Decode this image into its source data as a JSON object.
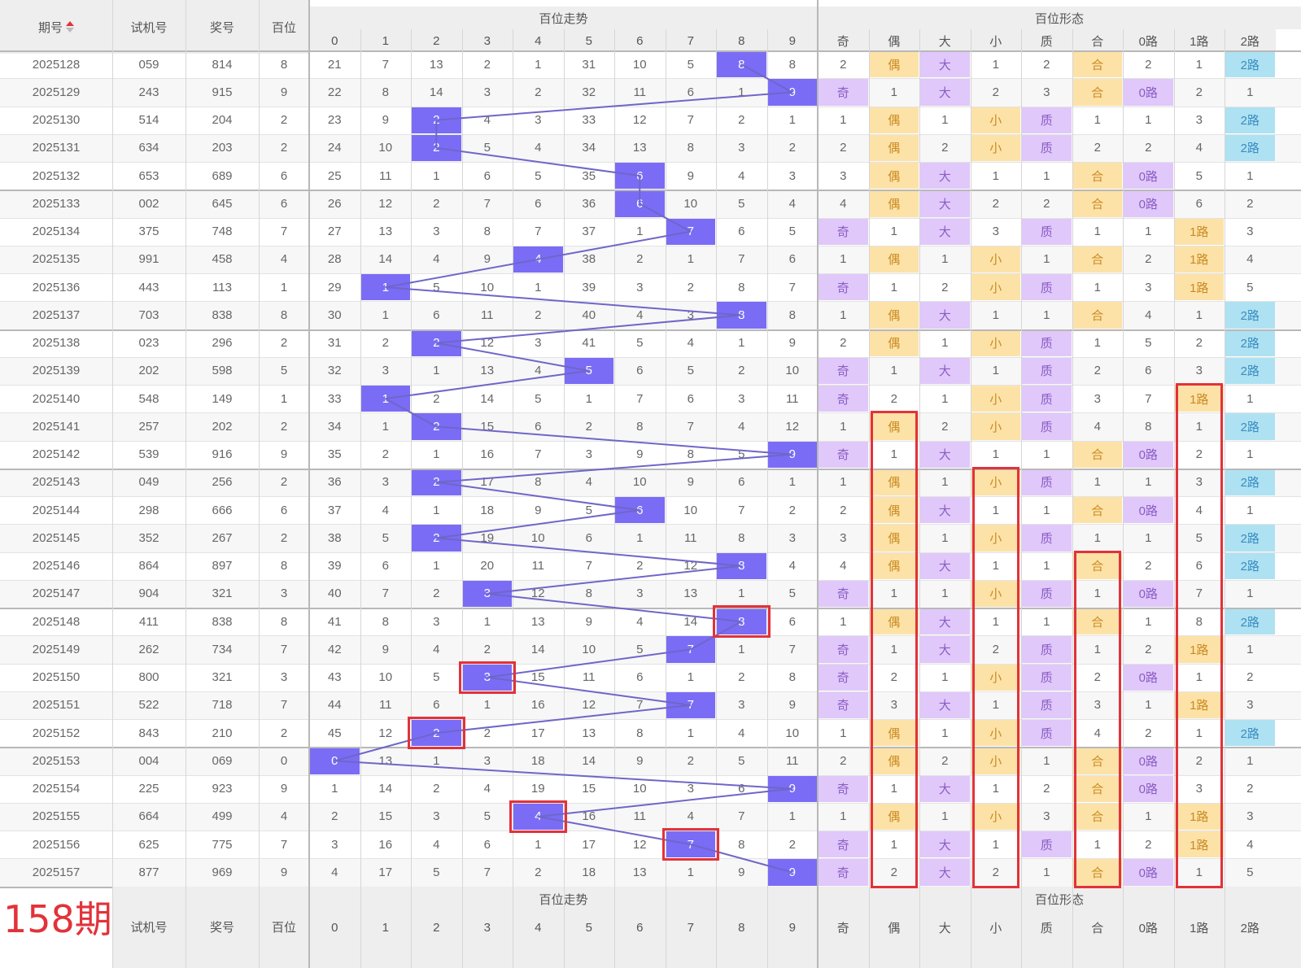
{
  "header": {
    "issue": "期号",
    "test_no": "试机号",
    "prize_no": "奖号",
    "hundreds": "百位",
    "trend_group": "百位走势",
    "form_group": "百位形态",
    "trend_cols": [
      "0",
      "1",
      "2",
      "3",
      "4",
      "5",
      "6",
      "7",
      "8",
      "9"
    ],
    "form_cols": [
      "奇",
      "偶",
      "大",
      "小",
      "质",
      "合",
      "0路",
      "1路",
      "2路"
    ]
  },
  "footer": {
    "issue_label": "158期",
    "test_no": "试机号",
    "prize_no": "奖号",
    "hundreds": "百位",
    "trend_group": "百位走势",
    "form_group": "百位形态"
  },
  "form_labels": {
    "odd": "奇",
    "even": "偶",
    "big": "大",
    "small": "小",
    "prime": "质",
    "comp": "合",
    "r0": "0路",
    "r1": "1路",
    "r2": "2路"
  },
  "colors": {
    "ball": "#7b6cf6",
    "highlight": "#e2323a",
    "purple_tag": "#e0c8fa",
    "yellow_tag": "#fde2a8",
    "blue_tag": "#aee2f2"
  },
  "chart_data": {
    "type": "table",
    "columns": [
      "期号",
      "试机号",
      "奖号",
      "百位",
      "0",
      "1",
      "2",
      "3",
      "4",
      "5",
      "6",
      "7",
      "8",
      "9",
      "奇",
      "偶",
      "大",
      "小",
      "质",
      "合",
      "0路",
      "1路",
      "2路"
    ],
    "rows": [
      {
        "issue": "2025128",
        "test": "059",
        "prize": "814",
        "h": 8,
        "miss": [
          21,
          7,
          13,
          2,
          1,
          31,
          10,
          5,
          8,
          8
        ],
        "form": [
          2,
          "偶",
          "大",
          1,
          2,
          "合",
          2,
          1,
          "2路"
        ]
      },
      {
        "issue": "2025129",
        "test": "243",
        "prize": "915",
        "h": 9,
        "miss": [
          22,
          8,
          14,
          3,
          2,
          32,
          11,
          6,
          1,
          9
        ],
        "form": [
          "奇",
          1,
          "大",
          2,
          3,
          "合",
          "0路",
          2,
          1
        ]
      },
      {
        "issue": "2025130",
        "test": "514",
        "prize": "204",
        "h": 2,
        "miss": [
          23,
          9,
          2,
          4,
          3,
          33,
          12,
          7,
          2,
          1
        ],
        "form": [
          1,
          "偶",
          1,
          "小",
          "质",
          1,
          1,
          3,
          "2路"
        ]
      },
      {
        "issue": "2025131",
        "test": "634",
        "prize": "203",
        "h": 2,
        "miss": [
          24,
          10,
          2,
          5,
          4,
          34,
          13,
          8,
          3,
          2
        ],
        "form": [
          2,
          "偶",
          2,
          "小",
          "质",
          2,
          2,
          4,
          "2路"
        ]
      },
      {
        "issue": "2025132",
        "test": "653",
        "prize": "689",
        "h": 6,
        "miss": [
          25,
          11,
          1,
          6,
          5,
          35,
          6,
          9,
          4,
          3
        ],
        "form": [
          3,
          "偶",
          "大",
          1,
          1,
          "合",
          "0路",
          5,
          1
        ]
      },
      {
        "issue": "2025133",
        "test": "002",
        "prize": "645",
        "h": 6,
        "miss": [
          26,
          12,
          2,
          7,
          6,
          36,
          6,
          10,
          5,
          4
        ],
        "form": [
          4,
          "偶",
          "大",
          2,
          2,
          "合",
          "0路",
          6,
          2
        ]
      },
      {
        "issue": "2025134",
        "test": "375",
        "prize": "748",
        "h": 7,
        "miss": [
          27,
          13,
          3,
          8,
          7,
          37,
          1,
          7,
          6,
          5
        ],
        "form": [
          "奇",
          1,
          "大",
          3,
          "质",
          1,
          1,
          "1路",
          3
        ]
      },
      {
        "issue": "2025135",
        "test": "991",
        "prize": "458",
        "h": 4,
        "miss": [
          28,
          14,
          4,
          9,
          4,
          38,
          2,
          1,
          7,
          6
        ],
        "form": [
          1,
          "偶",
          1,
          "小",
          1,
          "合",
          2,
          "1路",
          4
        ]
      },
      {
        "issue": "2025136",
        "test": "443",
        "prize": "113",
        "h": 1,
        "miss": [
          29,
          1,
          5,
          10,
          1,
          39,
          3,
          2,
          8,
          7
        ],
        "form": [
          "奇",
          1,
          2,
          "小",
          "质",
          1,
          3,
          "1路",
          5
        ]
      },
      {
        "issue": "2025137",
        "test": "703",
        "prize": "838",
        "h": 8,
        "miss": [
          30,
          1,
          6,
          11,
          2,
          40,
          4,
          3,
          8,
          8
        ],
        "form": [
          1,
          "偶",
          "大",
          1,
          1,
          "合",
          4,
          1,
          "2路"
        ]
      },
      {
        "issue": "2025138",
        "test": "023",
        "prize": "296",
        "h": 2,
        "miss": [
          31,
          2,
          2,
          12,
          3,
          41,
          5,
          4,
          1,
          9
        ],
        "form": [
          2,
          "偶",
          1,
          "小",
          "质",
          1,
          5,
          2,
          "2路"
        ]
      },
      {
        "issue": "2025139",
        "test": "202",
        "prize": "598",
        "h": 5,
        "miss": [
          32,
          3,
          1,
          13,
          4,
          5,
          6,
          5,
          2,
          10
        ],
        "form": [
          "奇",
          1,
          "大",
          1,
          "质",
          2,
          6,
          3,
          "2路"
        ]
      },
      {
        "issue": "2025140",
        "test": "548",
        "prize": "149",
        "h": 1,
        "miss": [
          33,
          1,
          2,
          14,
          5,
          1,
          7,
          6,
          3,
          11
        ],
        "form": [
          "奇",
          2,
          1,
          "小",
          "质",
          3,
          7,
          "1路",
          1
        ]
      },
      {
        "issue": "2025141",
        "test": "257",
        "prize": "202",
        "h": 2,
        "miss": [
          34,
          1,
          2,
          15,
          6,
          2,
          8,
          7,
          4,
          12
        ],
        "form": [
          1,
          "偶",
          2,
          "小",
          "质",
          4,
          8,
          1,
          "2路"
        ]
      },
      {
        "issue": "2025142",
        "test": "539",
        "prize": "916",
        "h": 9,
        "miss": [
          35,
          2,
          1,
          16,
          7,
          3,
          9,
          8,
          5,
          9
        ],
        "form": [
          "奇",
          1,
          "大",
          1,
          1,
          "合",
          "0路",
          2,
          1
        ]
      },
      {
        "issue": "2025143",
        "test": "049",
        "prize": "256",
        "h": 2,
        "miss": [
          36,
          3,
          2,
          17,
          8,
          4,
          10,
          9,
          6,
          1
        ],
        "form": [
          1,
          "偶",
          1,
          "小",
          "质",
          1,
          1,
          3,
          "2路"
        ]
      },
      {
        "issue": "2025144",
        "test": "298",
        "prize": "666",
        "h": 6,
        "miss": [
          37,
          4,
          1,
          18,
          9,
          5,
          6,
          10,
          7,
          2
        ],
        "form": [
          2,
          "偶",
          "大",
          1,
          1,
          "合",
          "0路",
          4,
          1
        ]
      },
      {
        "issue": "2025145",
        "test": "352",
        "prize": "267",
        "h": 2,
        "miss": [
          38,
          5,
          2,
          19,
          10,
          6,
          1,
          11,
          8,
          3
        ],
        "form": [
          3,
          "偶",
          1,
          "小",
          "质",
          1,
          1,
          5,
          "2路"
        ]
      },
      {
        "issue": "2025146",
        "test": "864",
        "prize": "897",
        "h": 8,
        "miss": [
          39,
          6,
          1,
          20,
          11,
          7,
          2,
          12,
          8,
          4
        ],
        "form": [
          4,
          "偶",
          "大",
          1,
          1,
          "合",
          2,
          6,
          "2路"
        ]
      },
      {
        "issue": "2025147",
        "test": "904",
        "prize": "321",
        "h": 3,
        "miss": [
          40,
          7,
          2,
          3,
          12,
          8,
          3,
          13,
          1,
          5
        ],
        "form": [
          "奇",
          1,
          1,
          "小",
          "质",
          1,
          "0路",
          7,
          1
        ]
      },
      {
        "issue": "2025148",
        "test": "411",
        "prize": "838",
        "h": 8,
        "miss": [
          41,
          8,
          3,
          1,
          13,
          9,
          4,
          14,
          8,
          6
        ],
        "form": [
          1,
          "偶",
          "大",
          1,
          1,
          "合",
          1,
          8,
          "2路"
        ]
      },
      {
        "issue": "2025149",
        "test": "262",
        "prize": "734",
        "h": 7,
        "miss": [
          42,
          9,
          4,
          2,
          14,
          10,
          5,
          7,
          1,
          7
        ],
        "form": [
          "奇",
          1,
          "大",
          2,
          "质",
          1,
          2,
          "1路",
          1
        ]
      },
      {
        "issue": "2025150",
        "test": "800",
        "prize": "321",
        "h": 3,
        "miss": [
          43,
          10,
          5,
          3,
          15,
          11,
          6,
          1,
          2,
          8
        ],
        "form": [
          "奇",
          2,
          1,
          "小",
          "质",
          2,
          "0路",
          1,
          2
        ]
      },
      {
        "issue": "2025151",
        "test": "522",
        "prize": "718",
        "h": 7,
        "miss": [
          44,
          11,
          6,
          1,
          16,
          12,
          7,
          7,
          3,
          9
        ],
        "form": [
          "奇",
          3,
          "大",
          1,
          "质",
          3,
          1,
          "1路",
          3
        ]
      },
      {
        "issue": "2025152",
        "test": "843",
        "prize": "210",
        "h": 2,
        "miss": [
          45,
          12,
          2,
          2,
          17,
          13,
          8,
          1,
          4,
          10
        ],
        "form": [
          1,
          "偶",
          1,
          "小",
          "质",
          4,
          2,
          1,
          "2路"
        ]
      },
      {
        "issue": "2025153",
        "test": "004",
        "prize": "069",
        "h": 0,
        "miss": [
          0,
          13,
          1,
          3,
          18,
          14,
          9,
          2,
          5,
          11
        ],
        "form": [
          2,
          "偶",
          2,
          "小",
          1,
          "合",
          "0路",
          2,
          1
        ]
      },
      {
        "issue": "2025154",
        "test": "225",
        "prize": "923",
        "h": 9,
        "miss": [
          1,
          14,
          2,
          4,
          19,
          15,
          10,
          3,
          6,
          9
        ],
        "form": [
          "奇",
          1,
          "大",
          1,
          2,
          "合",
          "0路",
          3,
          2
        ]
      },
      {
        "issue": "2025155",
        "test": "664",
        "prize": "499",
        "h": 4,
        "miss": [
          2,
          15,
          3,
          5,
          4,
          16,
          11,
          4,
          7,
          1
        ],
        "form": [
          1,
          "偶",
          1,
          "小",
          3,
          "合",
          1,
          "1路",
          3
        ]
      },
      {
        "issue": "2025156",
        "test": "625",
        "prize": "775",
        "h": 7,
        "miss": [
          3,
          16,
          4,
          6,
          1,
          17,
          12,
          7,
          8,
          2
        ],
        "form": [
          "奇",
          1,
          "大",
          1,
          "质",
          1,
          2,
          "1路",
          4
        ]
      },
      {
        "issue": "2025157",
        "test": "877",
        "prize": "969",
        "h": 9,
        "miss": [
          4,
          17,
          5,
          7,
          2,
          18,
          13,
          1,
          9,
          9
        ],
        "form": [
          "奇",
          2,
          "大",
          2,
          1,
          "合",
          "0路",
          1,
          5
        ]
      }
    ],
    "highlight_trend_rows": [
      "2025148",
      "2025150",
      "2025152",
      "2025155",
      "2025156"
    ],
    "highlight_columns": [
      {
        "col": "偶",
        "from": "2025141",
        "to": "2025157"
      },
      {
        "col": "小",
        "from": "2025143",
        "to": "2025157"
      },
      {
        "col": "合",
        "from": "2025146",
        "to": "2025157"
      },
      {
        "col": "1路",
        "from": "2025140",
        "to": "2025157"
      }
    ]
  }
}
